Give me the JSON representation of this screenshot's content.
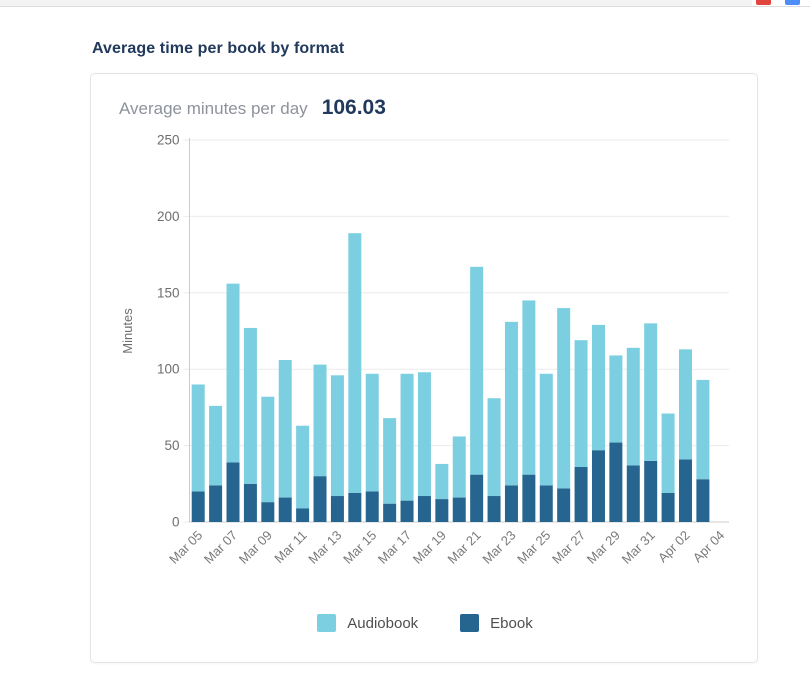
{
  "window": {
    "chips": [
      {
        "name": "red-chip",
        "color": "#e1453d"
      },
      {
        "name": "blue-chip",
        "color": "#4e8cf7"
      }
    ],
    "edge_color": "#f3f3f3"
  },
  "page": {
    "title": "Average time per book by format"
  },
  "card": {
    "stat_label": "Average minutes per day",
    "stat_value": "106.03"
  },
  "chart_data": {
    "type": "bar",
    "stacked": true,
    "title": "Average time per book by format",
    "xlabel": "",
    "ylabel": "Minutes",
    "ylim": [
      0,
      250
    ],
    "yticks": [
      0,
      50,
      100,
      150,
      200,
      250
    ],
    "grid": true,
    "legend_position": "bottom",
    "xtick_every": 2,
    "categories": [
      "Mar 05",
      "Mar 06",
      "Mar 07",
      "Mar 08",
      "Mar 09",
      "Mar 10",
      "Mar 11",
      "Mar 12",
      "Mar 13",
      "Mar 14",
      "Mar 15",
      "Mar 16",
      "Mar 17",
      "Mar 18",
      "Mar 19",
      "Mar 20",
      "Mar 21",
      "Mar 22",
      "Mar 23",
      "Mar 24",
      "Mar 25",
      "Mar 26",
      "Mar 27",
      "Mar 28",
      "Mar 29",
      "Mar 30",
      "Mar 31",
      "Apr 01",
      "Apr 02",
      "Apr 03",
      "Apr 04"
    ],
    "stack_order": [
      "Ebook",
      "Audiobook"
    ],
    "series": [
      {
        "name": "Audiobook",
        "color": "#7bcfe0",
        "values": [
          70,
          52,
          117,
          102,
          69,
          90,
          54,
          73,
          79,
          170,
          77,
          56,
          83,
          81,
          23,
          40,
          136,
          64,
          107,
          114,
          73,
          118,
          83,
          82,
          57,
          77,
          90,
          52,
          72,
          65,
          0
        ]
      },
      {
        "name": "Ebook",
        "color": "#26658f",
        "values": [
          20,
          24,
          39,
          25,
          13,
          16,
          9,
          30,
          17,
          19,
          20,
          12,
          14,
          17,
          15,
          16,
          31,
          17,
          24,
          31,
          24,
          22,
          36,
          47,
          52,
          37,
          40,
          19,
          41,
          28,
          0
        ]
      }
    ],
    "totals": [
      90,
      76,
      156,
      127,
      82,
      106,
      63,
      103,
      96,
      189,
      97,
      68,
      97,
      98,
      38,
      56,
      167,
      81,
      131,
      145,
      97,
      140,
      119,
      129,
      109,
      114,
      130,
      71,
      113,
      93,
      0
    ],
    "axis_colors": {
      "grid": "#ebebeb",
      "axis": "#cccccc",
      "tick_text": "#6e6e6e",
      "axis_label": "#6e6e6e"
    }
  }
}
